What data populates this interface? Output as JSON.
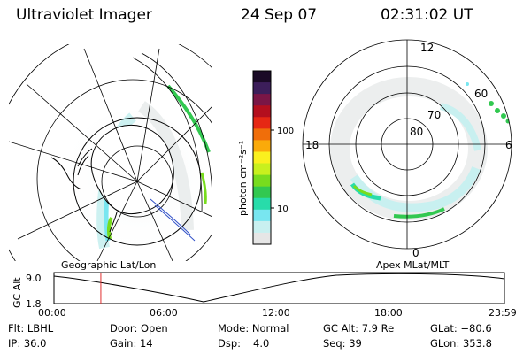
{
  "header": {
    "instrument": "Ultraviolet Imager",
    "date": "24 Sep 07",
    "time": "02:31:02 UT"
  },
  "colorbar": {
    "unit_label": "photon cm⁻²s⁻¹",
    "ticks": [
      "100",
      "10"
    ],
    "colors": [
      "#1a0a26",
      "#3c1e5a",
      "#7a1646",
      "#b40f1e",
      "#e62814",
      "#f06e0a",
      "#faaa0a",
      "#faf01e",
      "#c8f01e",
      "#78dc1e",
      "#32c850",
      "#28dcaa",
      "#78e6f0",
      "#c8f0f0",
      "#e6e6e6"
    ]
  },
  "panels": {
    "geo_label": "Geographic Lat/Lon",
    "apex_label": "Apex MLat/MLT",
    "mlt_labels": {
      "top": "12",
      "bottom": "0",
      "left": "18",
      "right": "6"
    },
    "mlat_labels": [
      "80",
      "70",
      "60"
    ]
  },
  "altitude": {
    "axis_label": "GC Alt",
    "ymax": "9.0",
    "ymin": "1.8",
    "x_ticks": [
      "00:00",
      "06:00",
      "12:00",
      "18:00",
      "23:59"
    ],
    "current_time_fraction": 0.104
  },
  "info": {
    "filter": "Flt: LBHL",
    "door": "Door: Open",
    "mode": "Mode: Normal",
    "gc_alt": "GC Alt: 7.9 Re",
    "glat": "GLat: −80.6",
    "ip": "IP: 36.0",
    "gain": "Gain: 14",
    "dsp_label": "Dsp:",
    "dsp_value": "4.0",
    "seq": "Seq: 39",
    "glon": "GLon: 353.8"
  },
  "colors": {
    "marker": "#e03030",
    "accent_green": "#28c832",
    "accent_cyan": "#78e6f0"
  }
}
